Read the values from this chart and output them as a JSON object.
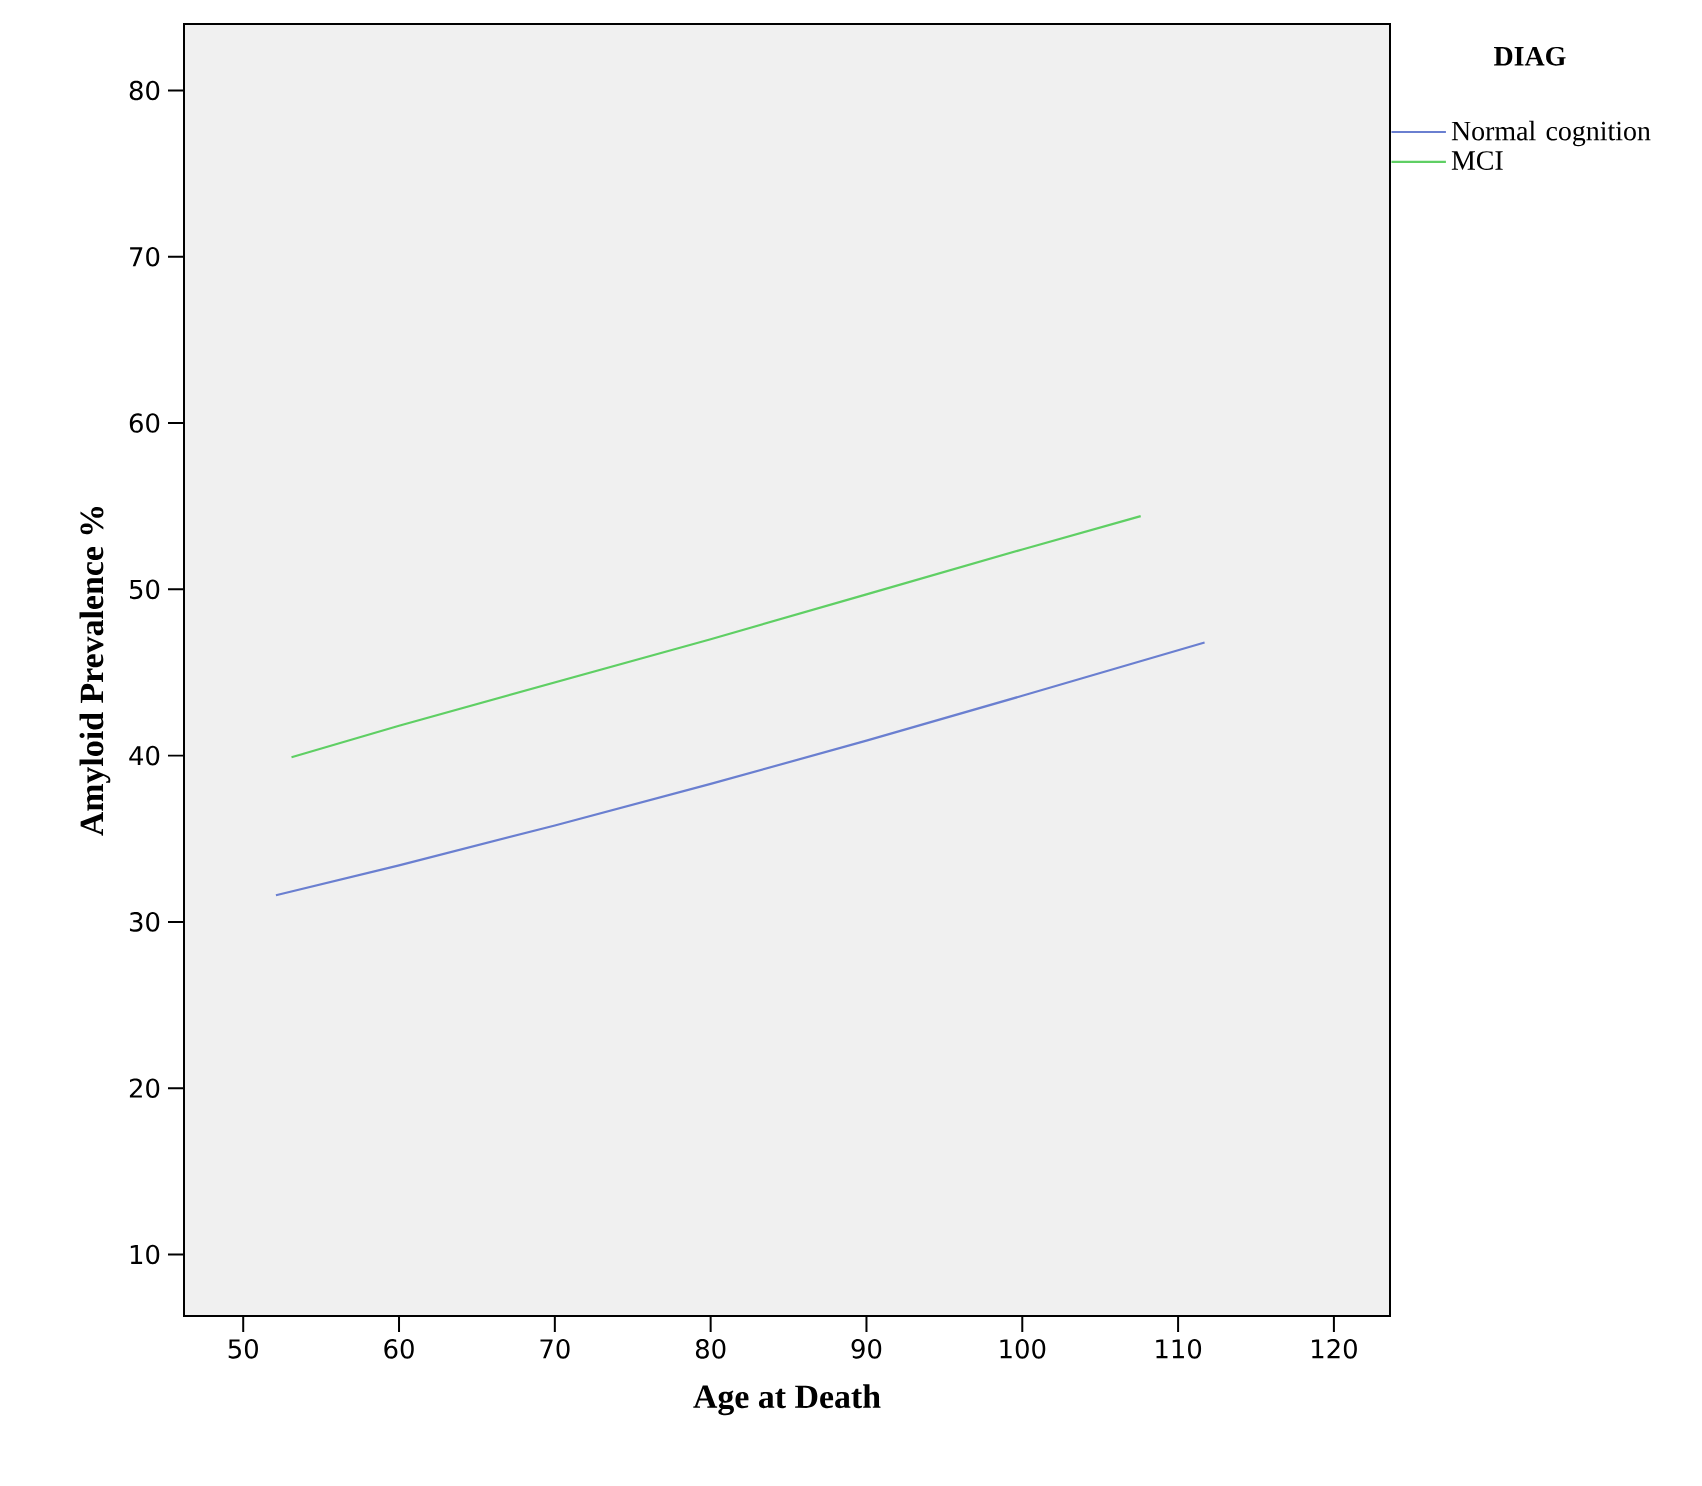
{
  "chart_data": {
    "type": "line",
    "xlabel": "Age at Death",
    "ylabel": "Amyloid Prevalence %",
    "legend_title": "DIAG",
    "legend": "top right",
    "grid": false,
    "marker": "none",
    "line_style": "solid",
    "xlim": [
      46.2,
      123.6
    ],
    "ylim": [
      6.3,
      84.0
    ],
    "xticks": [
      50,
      60,
      70,
      80,
      90,
      100,
      110,
      120
    ],
    "yticks": [
      10,
      20,
      30,
      40,
      50,
      60,
      70,
      80
    ],
    "series": [
      {
        "name": "Normal cognition",
        "color": "#6a7fd0",
        "x": [
          52.1,
          60,
          70,
          80,
          90,
          100,
          111.7
        ],
        "values": [
          31.6,
          33.4,
          35.8,
          38.3,
          40.9,
          43.6,
          46.8
        ]
      },
      {
        "name": "MCI",
        "color": "#5fcf64",
        "x": [
          53.1,
          60,
          70,
          80,
          90,
          100,
          107.6
        ],
        "values": [
          39.9,
          41.8,
          44.4,
          47.0,
          49.7,
          52.4,
          54.4
        ]
      }
    ]
  }
}
